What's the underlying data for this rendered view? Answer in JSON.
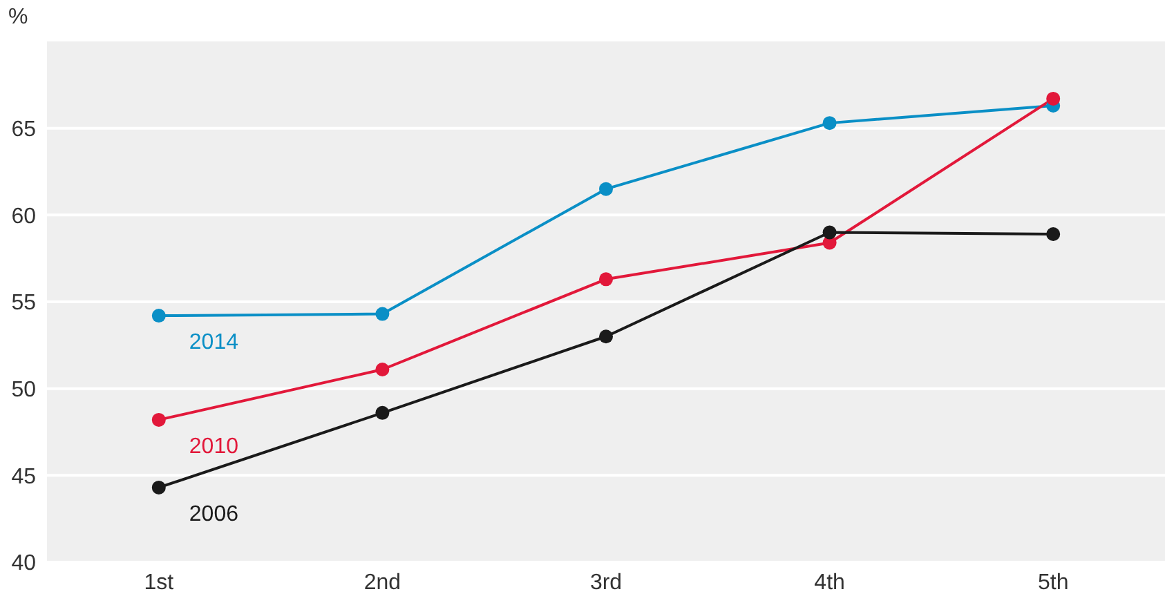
{
  "chart_data": {
    "type": "line",
    "ylabel": "%",
    "categories": [
      "1st",
      "2nd",
      "3rd",
      "4th",
      "5th"
    ],
    "series": [
      {
        "name": "2014",
        "color": "#0a8fc6",
        "values": [
          54.2,
          54.3,
          61.5,
          65.3,
          66.3
        ]
      },
      {
        "name": "2010",
        "color": "#e2183a",
        "values": [
          48.2,
          51.1,
          56.3,
          58.4,
          66.7
        ]
      },
      {
        "name": "2006",
        "color": "#1a1a1a",
        "values": [
          44.3,
          48.6,
          53.0,
          59.0,
          58.9
        ]
      }
    ],
    "ylim": [
      40,
      70
    ],
    "yticks": [
      40,
      45,
      50,
      55,
      60,
      65
    ],
    "grid": "y",
    "legend": false,
    "marker": "circle",
    "line_style": "solid"
  }
}
